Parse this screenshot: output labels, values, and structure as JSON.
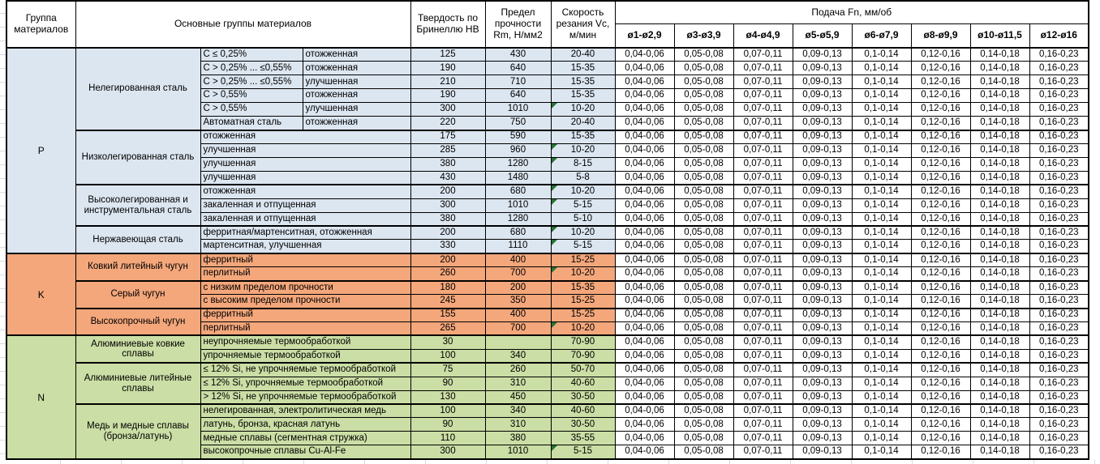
{
  "table": {
    "headers": {
      "group": "Группа материалов",
      "material_groups": "Основные группы материалов",
      "hardness": "Твердость по Бринеллю HB",
      "strength": "Предел прочности Rm, Н/мм2",
      "speed": "Скорость резания Vc, м/мин",
      "feed": "Подача Fn, мм/об",
      "feed_columns": [
        "ø1-ø2,9",
        "ø3-ø3,9",
        "ø4-ø4,9",
        "ø5-ø5,9",
        "ø6-ø7,9",
        "ø8-ø9,9",
        "ø10-ø11,5",
        "ø12-ø16"
      ]
    },
    "feed_values": [
      "0,04-0,06",
      "0,05-0,08",
      "0,07-0,11",
      "0,09-0,13",
      "0,1-0,14",
      "0,12-0,16",
      "0,14-0,18",
      "0,16-0,23"
    ],
    "flag_color": "#267335",
    "groups": [
      {
        "letter": "P",
        "color": "#DCE6F1",
        "families": [
          {
            "name": "Нелегированная сталь",
            "rows": [
              {
                "sub1": "C ≤ 0,25%",
                "sub2": "отожженная",
                "hb": "125",
                "rm": "430",
                "vc": "20-40",
                "flag": false
              },
              {
                "sub1": "C > 0,25% ... ≤0,55%",
                "sub2": "отожженная",
                "hb": "190",
                "rm": "640",
                "vc": "15-35",
                "flag": false
              },
              {
                "sub1": "C > 0,25% ... ≤0,55%",
                "sub2": "улучшенная",
                "hb": "210",
                "rm": "710",
                "vc": "15-35",
                "flag": false
              },
              {
                "sub1": "C > 0,55%",
                "sub2": "отожженная",
                "hb": "190",
                "rm": "640",
                "vc": "15-35",
                "flag": false
              },
              {
                "sub1": "C > 0,55%",
                "sub2": "улучшенная",
                "hb": "300",
                "rm": "1010",
                "vc": "10-20",
                "flag": true
              },
              {
                "sub1": "Автоматная сталь",
                "sub2": "отожженная",
                "hb": "220",
                "rm": "750",
                "vc": "20-40",
                "flag": false
              }
            ]
          },
          {
            "name": "Низколегированная сталь",
            "rows": [
              {
                "sub": "отожженная",
                "hb": "175",
                "rm": "590",
                "vc": "15-35",
                "flag": false
              },
              {
                "sub": "улучшенная",
                "hb": "285",
                "rm": "960",
                "vc": "10-20",
                "flag": true
              },
              {
                "sub": "улучшенная",
                "hb": "380",
                "rm": "1280",
                "vc": "8-15",
                "flag": true
              },
              {
                "sub": "улучшенная",
                "hb": "430",
                "rm": "1480",
                "vc": "5-8",
                "flag": false
              }
            ]
          },
          {
            "name": "Высоколегированная и инструментальная сталь",
            "rows": [
              {
                "sub": "отожженная",
                "hb": "200",
                "rm": "680",
                "vc": "10-20",
                "flag": true
              },
              {
                "sub": "закаленная и отпущенная",
                "hb": "300",
                "rm": "1010",
                "vc": "5-15",
                "flag": true
              },
              {
                "sub": "закаленная и отпущенная",
                "hb": "380",
                "rm": "1280",
                "vc": "5-10",
                "flag": false
              }
            ]
          },
          {
            "name": "Нержавеющая сталь",
            "rows": [
              {
                "sub": "ферритная/мартенситная, отожженная",
                "hb": "200",
                "rm": "680",
                "vc": "10-20",
                "flag": true
              },
              {
                "sub": "мартенситная, улучшенная",
                "hb": "330",
                "rm": "1110",
                "vc": "5-15",
                "flag": true
              }
            ]
          }
        ]
      },
      {
        "letter": "K",
        "color": "#F4A77B",
        "families": [
          {
            "name": "Ковкий литейный чугун",
            "rows": [
              {
                "sub": "ферритный",
                "hb": "200",
                "rm": "400",
                "vc": "15-25",
                "flag": false
              },
              {
                "sub": "перлитный",
                "hb": "260",
                "rm": "700",
                "vc": "10-20",
                "flag": true
              }
            ]
          },
          {
            "name": "Серый чугун",
            "rows": [
              {
                "sub": "с низким пределом прочности",
                "hb": "180",
                "rm": "200",
                "vc": "15-35",
                "flag": false
              },
              {
                "sub": "с высоким пределом прочности",
                "hb": "245",
                "rm": "350",
                "vc": "15-25",
                "flag": false
              }
            ]
          },
          {
            "name": "Высокопрочный чугун",
            "rows": [
              {
                "sub": "ферритный",
                "hb": "155",
                "rm": "400",
                "vc": "15-25",
                "flag": false
              },
              {
                "sub": "перлитный",
                "hb": "265",
                "rm": "700",
                "vc": "10-20",
                "flag": true
              }
            ]
          }
        ]
      },
      {
        "letter": "N",
        "color": "#CBDEA5",
        "families": [
          {
            "name": "Алюминиевые ковкие сплавы",
            "rows": [
              {
                "sub": "неупрочняемые термообработкой",
                "hb": "30",
                "rm": "",
                "vc": "70-90",
                "flag": false
              },
              {
                "sub": "упрочняемые термообработкой",
                "hb": "100",
                "rm": "340",
                "vc": "70-90",
                "flag": false
              }
            ]
          },
          {
            "name": "Алюминиевые литейные сплавы",
            "rows": [
              {
                "sub": "≤ 12% Si, не упрочняемые термообработкой",
                "hb": "75",
                "rm": "260",
                "vc": "50-70",
                "flag": false
              },
              {
                "sub": "≤ 12% Si, упрочняемые термообработкой",
                "hb": "90",
                "rm": "310",
                "vc": "40-60",
                "flag": false
              },
              {
                "sub": "> 12% Si, не упрочняемые термообработкой",
                "hb": "130",
                "rm": "450",
                "vc": "30-50",
                "flag": false
              }
            ]
          },
          {
            "name": "Медь и медные сплавы (бронза/латунь)",
            "rows": [
              {
                "sub": "нелегированная, электролитическая медь",
                "hb": "100",
                "rm": "340",
                "vc": "40-60",
                "flag": false
              },
              {
                "sub": "латунь, бронза, красная латунь",
                "hb": "90",
                "rm": "310",
                "vc": "30-50",
                "flag": false
              },
              {
                "sub": "медные сплавы (сегментная стружка)",
                "hb": "110",
                "rm": "380",
                "vc": "35-55",
                "flag": false
              },
              {
                "sub": "высокопрочные сплавы Cu-Al-Fe",
                "hb": "300",
                "rm": "1010",
                "vc": "5-15",
                "flag": true
              }
            ]
          }
        ]
      }
    ]
  }
}
